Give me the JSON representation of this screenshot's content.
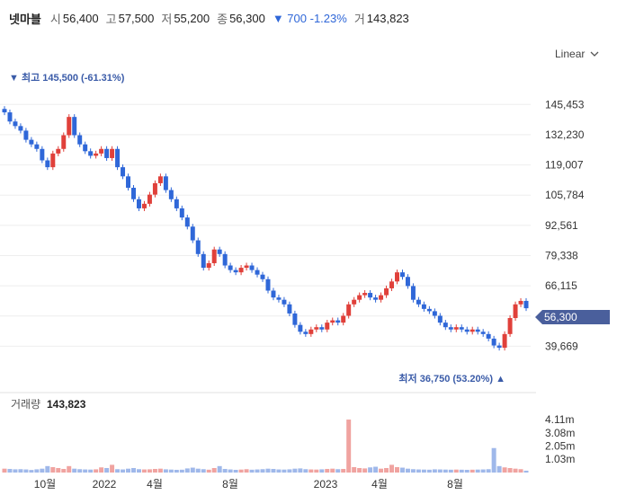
{
  "header": {
    "name": "넷마블",
    "open_label": "시",
    "open": "56,400",
    "high_label": "고",
    "high": "57,500",
    "low_label": "저",
    "low": "55,200",
    "close_label": "종",
    "close": "56,300",
    "change": "▼ 700 -1.23%",
    "volume_label": "거",
    "volume": "143,823"
  },
  "scale_selector": {
    "label": "Linear"
  },
  "price_panel": {
    "max_marker": "▼ 최고 145,500 (-61.31%)",
    "min_marker": "최저 36,750 (53.20%) ▲",
    "current_price_label": "56,300"
  },
  "volume_panel": {
    "title_label": "거래량",
    "title_value": "143,823"
  },
  "chart_data": {
    "type": "candlestick",
    "x_ticks": [
      "10월",
      "2022",
      "4월",
      "8월",
      "2023",
      "4월",
      "8월"
    ],
    "price_axis_ticks": [
      145453,
      132230,
      119007,
      105784,
      92561,
      79338,
      66115,
      52892,
      39669
    ],
    "price_axis_labels": [
      "145,453",
      "132,230",
      "119,007",
      "105,784",
      "92,561",
      "79,338",
      "66,115",
      "52,892",
      "39,669"
    ],
    "volume_axis_labels": [
      "4.11m",
      "3.08m",
      "2.05m",
      "1.03m"
    ],
    "volume_axis_ticks": [
      4110000,
      3080000,
      2050000,
      1030000
    ],
    "price_ylim": [
      30000,
      155000
    ],
    "volume_ylim": [
      0,
      4600000
    ],
    "high": 145500,
    "low": 36750,
    "last_close": 56300,
    "closes": [
      142000,
      138000,
      136000,
      134000,
      130000,
      128000,
      126000,
      121000,
      118000,
      124000,
      126000,
      132000,
      140000,
      132000,
      128000,
      125000,
      123000,
      124000,
      126000,
      122000,
      126000,
      118000,
      114000,
      109000,
      104000,
      100000,
      102000,
      106000,
      111000,
      114000,
      108000,
      104000,
      100000,
      96000,
      92000,
      86000,
      80000,
      74000,
      76000,
      82000,
      80000,
      75000,
      73000,
      72000,
      74000,
      75000,
      73000,
      71000,
      69000,
      64000,
      61000,
      60000,
      58000,
      54000,
      49000,
      46000,
      45000,
      47000,
      48000,
      47000,
      50000,
      51000,
      50000,
      53000,
      58000,
      60000,
      62000,
      63000,
      61000,
      60000,
      62000,
      65000,
      68000,
      72000,
      70000,
      66000,
      60000,
      58000,
      56000,
      55000,
      53000,
      50000,
      48000,
      47000,
      48000,
      47000,
      46000,
      47000,
      46000,
      45000,
      43000,
      40000,
      39000,
      45000,
      52000,
      58000,
      59500,
      56300
    ],
    "volumes": [
      300000,
      280000,
      250000,
      260000,
      240000,
      200000,
      250000,
      300000,
      500000,
      420000,
      350000,
      280000,
      500000,
      300000,
      260000,
      240000,
      230000,
      250000,
      400000,
      350000,
      600000,
      260000,
      240000,
      300000,
      350000,
      260000,
      240000,
      250000,
      280000,
      300000,
      250000,
      230000,
      210000,
      220000,
      320000,
      380000,
      300000,
      260000,
      220000,
      350000,
      500000,
      280000,
      240000,
      210000,
      230000,
      260000,
      220000,
      240000,
      260000,
      300000,
      280000,
      240000,
      230000,
      250000,
      300000,
      320000,
      260000,
      240000,
      230000,
      250000,
      280000,
      300000,
      260000,
      280000,
      4110000,
      420000,
      350000,
      320000,
      400000,
      450000,
      300000,
      350000,
      600000,
      420000,
      380000,
      300000,
      260000,
      240000,
      230000,
      220000,
      250000,
      240000,
      230000,
      220000,
      230000,
      220000,
      210000,
      220000,
      230000,
      240000,
      260000,
      1900000,
      500000,
      400000,
      350000,
      300000,
      260000,
      143823
    ]
  }
}
